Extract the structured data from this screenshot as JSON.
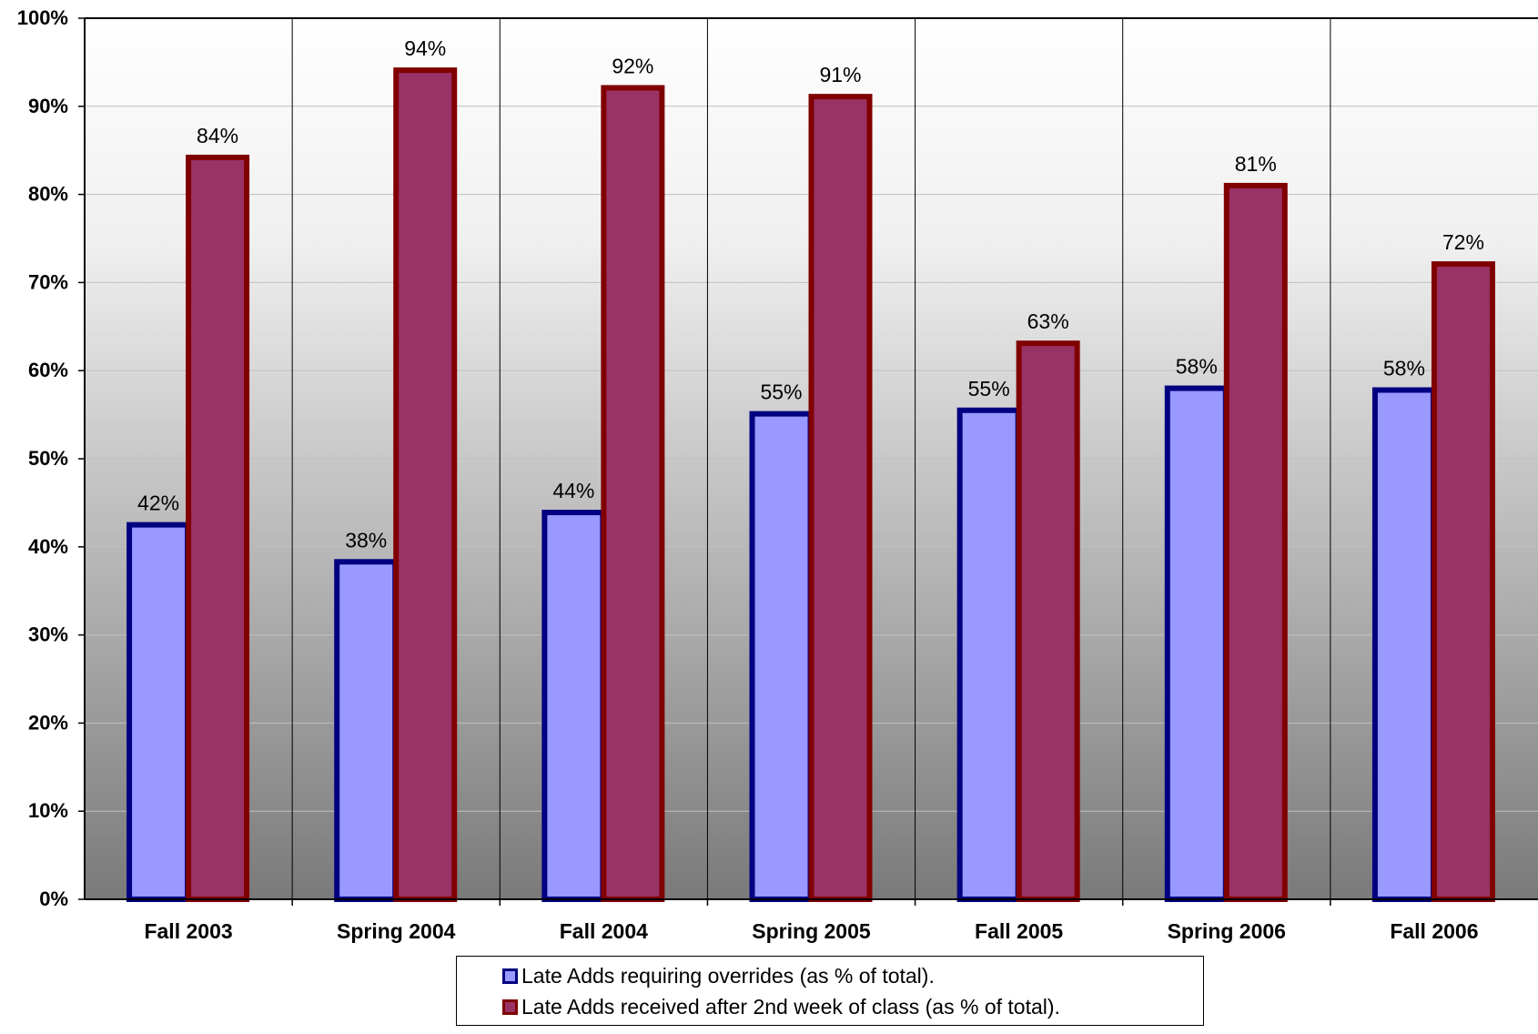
{
  "chart_data": {
    "type": "bar",
    "categories": [
      "Fall 2003",
      "Spring 2004",
      "Fall 2004",
      "Spring 2005",
      "Fall 2005",
      "Spring 2006",
      "Fall 2006"
    ],
    "series": [
      {
        "name": "Late Adds requiring overrides (as % of total).",
        "values": [
          42.5,
          38.3,
          43.9,
          55.1,
          55.5,
          58.0,
          57.8
        ],
        "labels": [
          "42%",
          "38%",
          "44%",
          "55%",
          "55%",
          "58%",
          "58%"
        ],
        "fill": "#9999ff",
        "border": "#000080"
      },
      {
        "name": "Late Adds received after 2nd week of class (as % of total).",
        "values": [
          84.2,
          94.1,
          92.1,
          91.1,
          63.1,
          81.0,
          72.1
        ],
        "labels": [
          "84%",
          "94%",
          "92%",
          "91%",
          "63%",
          "81%",
          "72%"
        ],
        "fill": "#993366",
        "border": "#800000"
      }
    ],
    "yticks": [
      "0%",
      "10%",
      "20%",
      "30%",
      "40%",
      "50%",
      "60%",
      "70%",
      "80%",
      "90%",
      "100%"
    ],
    "ylim": [
      0,
      100
    ],
    "title": "",
    "xlabel": "",
    "ylabel": "",
    "grid": true,
    "legend_position": "bottom",
    "background": "gradient white-to-gray"
  }
}
